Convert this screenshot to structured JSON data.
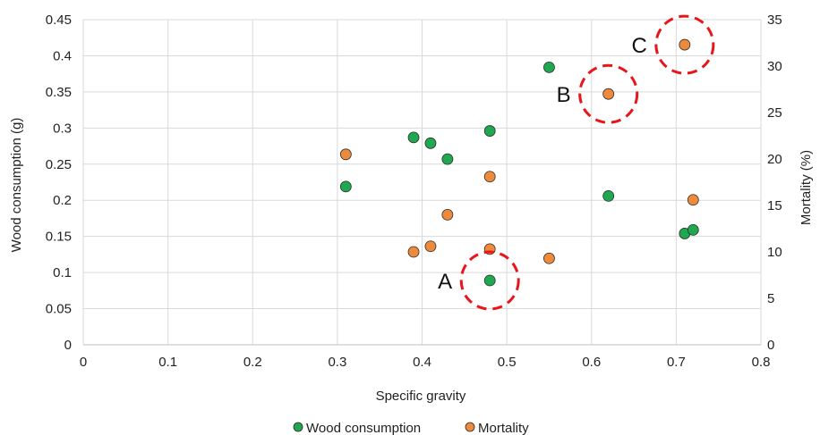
{
  "chart_data": {
    "type": "scatter",
    "xlabel": "Specific gravity",
    "ylabel": "Wood consumption (g)",
    "y2label": "Mortality (%)",
    "xlim": [
      0,
      0.8
    ],
    "ylim": [
      0,
      0.45
    ],
    "y2lim": [
      0,
      35
    ],
    "x_ticks": [
      "0",
      "0.1",
      "0.2",
      "0.3",
      "0.4",
      "0.5",
      "0.6",
      "0.7",
      "0.8"
    ],
    "y_ticks": [
      "0",
      "0.05",
      "0.1",
      "0.15",
      "0.2",
      "0.25",
      "0.3",
      "0.35",
      "0.4",
      "0.45"
    ],
    "y2_ticks": [
      "0",
      "5",
      "10",
      "15",
      "20",
      "25",
      "30",
      "35"
    ],
    "grid": true,
    "legend_position": "bottom",
    "series": [
      {
        "name": "Wood consumption",
        "axis": "left",
        "color": "#1fa84f",
        "points": [
          {
            "x": 0.31,
            "y": 0.219
          },
          {
            "x": 0.39,
            "y": 0.287
          },
          {
            "x": 0.41,
            "y": 0.279
          },
          {
            "x": 0.43,
            "y": 0.257
          },
          {
            "x": 0.48,
            "y": 0.296
          },
          {
            "x": 0.48,
            "y": 0.089
          },
          {
            "x": 0.55,
            "y": 0.384
          },
          {
            "x": 0.62,
            "y": 0.206
          },
          {
            "x": 0.71,
            "y": 0.154
          },
          {
            "x": 0.72,
            "y": 0.159
          }
        ]
      },
      {
        "name": "Mortality",
        "axis": "right",
        "color": "#ee8a3c",
        "points": [
          {
            "x": 0.31,
            "y": 20.5
          },
          {
            "x": 0.39,
            "y": 10.0
          },
          {
            "x": 0.41,
            "y": 10.6
          },
          {
            "x": 0.43,
            "y": 14.0
          },
          {
            "x": 0.48,
            "y": 18.1
          },
          {
            "x": 0.48,
            "y": 10.3
          },
          {
            "x": 0.55,
            "y": 9.3
          },
          {
            "x": 0.62,
            "y": 27.0
          },
          {
            "x": 0.71,
            "y": 32.3
          },
          {
            "x": 0.72,
            "y": 15.6
          }
        ]
      }
    ],
    "annotations": [
      {
        "label": "A",
        "x": 0.48,
        "y": 0.089,
        "axis": "left"
      },
      {
        "label": "B",
        "x": 0.62,
        "y": 27.0,
        "axis": "right"
      },
      {
        "label": "C",
        "x": 0.71,
        "y": 32.3,
        "axis": "right"
      }
    ]
  }
}
